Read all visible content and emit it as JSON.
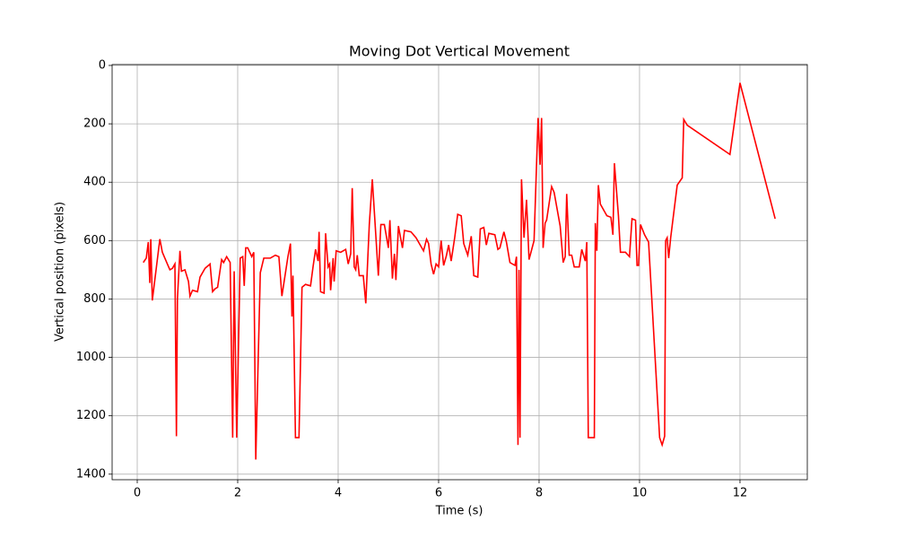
{
  "chart_data": {
    "type": "line",
    "title": "Moving Dot Vertical Movement",
    "x_label": "Time (s)",
    "y_label": "Vertical position (pixels)",
    "xlim": [
      -0.5,
      13.34
    ],
    "ylim": [
      -3,
      1419
    ],
    "y_inverted": true,
    "xticks": [
      0,
      2,
      4,
      6,
      8,
      10,
      12
    ],
    "yticks": [
      0,
      200,
      400,
      600,
      800,
      1000,
      1200,
      1400
    ],
    "grid": true,
    "x": [
      0.12,
      0.18,
      0.22,
      0.25,
      0.27,
      0.3,
      0.45,
      0.5,
      0.6,
      0.65,
      0.7,
      0.75,
      0.78,
      0.8,
      0.85,
      0.88,
      0.95,
      1.02,
      1.05,
      1.1,
      1.2,
      1.25,
      1.35,
      1.45,
      1.5,
      1.55,
      1.6,
      1.68,
      1.72,
      1.78,
      1.85,
      1.9,
      1.93,
      1.98,
      2.05,
      2.1,
      2.13,
      2.16,
      2.2,
      2.28,
      2.32,
      2.36,
      2.45,
      2.52,
      2.65,
      2.75,
      2.82,
      2.88,
      3.0,
      3.05,
      3.08,
      3.1,
      3.15,
      3.22,
      3.28,
      3.35,
      3.45,
      3.5,
      3.55,
      3.6,
      3.62,
      3.65,
      3.72,
      3.75,
      3.8,
      3.83,
      3.85,
      3.9,
      3.92,
      3.96,
      4.05,
      4.15,
      4.2,
      4.25,
      4.28,
      4.32,
      4.35,
      4.38,
      4.42,
      4.5,
      4.55,
      4.62,
      4.68,
      4.72,
      4.8,
      4.85,
      4.92,
      5.0,
      5.03,
      5.08,
      5.12,
      5.15,
      5.2,
      5.28,
      5.32,
      5.45,
      5.55,
      5.7,
      5.76,
      5.8,
      5.85,
      5.9,
      5.95,
      6.0,
      6.05,
      6.1,
      6.15,
      6.2,
      6.25,
      6.32,
      6.38,
      6.45,
      6.5,
      6.58,
      6.65,
      6.7,
      6.78,
      6.83,
      6.9,
      6.95,
      7.0,
      7.12,
      7.18,
      7.22,
      7.3,
      7.35,
      7.42,
      7.52,
      7.55,
      7.58,
      7.6,
      7.62,
      7.65,
      7.7,
      7.75,
      7.8,
      7.9,
      7.98,
      8.02,
      8.05,
      8.08,
      8.12,
      8.15,
      8.25,
      8.3,
      8.42,
      8.48,
      8.52,
      8.55,
      8.6,
      8.65,
      8.7,
      8.8,
      8.85,
      8.92,
      8.95,
      8.98,
      9.1,
      9.12,
      9.15,
      9.18,
      9.22,
      9.35,
      9.43,
      9.47,
      9.5,
      9.58,
      9.62,
      9.72,
      9.8,
      9.85,
      9.92,
      9.95,
      9.98,
      10.02,
      10.1,
      10.18,
      10.4,
      10.45,
      10.5,
      10.52,
      10.55,
      10.58,
      10.62,
      10.75,
      10.85,
      10.88,
      10.95,
      11.8,
      12.0,
      12.7
    ],
    "series": [
      {
        "name": "Vertical position",
        "color": "#ff0000",
        "values": [
          675,
          660,
          605,
          745,
          595,
          805,
          595,
          640,
          680,
          700,
          695,
          680,
          1270,
          800,
          635,
          705,
          700,
          740,
          790,
          770,
          775,
          725,
          695,
          680,
          775,
          765,
          760,
          665,
          675,
          655,
          675,
          1275,
          705,
          1275,
          660,
          655,
          755,
          625,
          625,
          655,
          640,
          1350,
          710,
          660,
          660,
          650,
          655,
          790,
          655,
          610,
          860,
          720,
          1275,
          1275,
          760,
          750,
          755,
          690,
          630,
          670,
          570,
          775,
          780,
          575,
          690,
          680,
          770,
          660,
          740,
          635,
          640,
          630,
          680,
          645,
          420,
          690,
          700,
          650,
          720,
          720,
          815,
          545,
          390,
          500,
          720,
          545,
          545,
          625,
          530,
          730,
          645,
          735,
          550,
          625,
          565,
          570,
          590,
          635,
          595,
          610,
          680,
          715,
          680,
          690,
          600,
          685,
          655,
          615,
          670,
          590,
          510,
          515,
          610,
          650,
          585,
          720,
          725,
          560,
          555,
          615,
          575,
          580,
          630,
          625,
          570,
          605,
          675,
          685,
          655,
          1300,
          700,
          1275,
          390,
          590,
          460,
          665,
          600,
          180,
          340,
          180,
          625,
          540,
          530,
          415,
          435,
          550,
          675,
          655,
          440,
          650,
          650,
          690,
          690,
          630,
          670,
          605,
          1275,
          1275,
          540,
          635,
          410,
          475,
          515,
          520,
          580,
          335,
          515,
          640,
          640,
          655,
          525,
          530,
          685,
          685,
          545,
          580,
          605,
          1275,
          1300,
          1270,
          600,
          590,
          660,
          590,
          410,
          385,
          185,
          205,
          305,
          60,
          525
        ]
      }
    ]
  }
}
